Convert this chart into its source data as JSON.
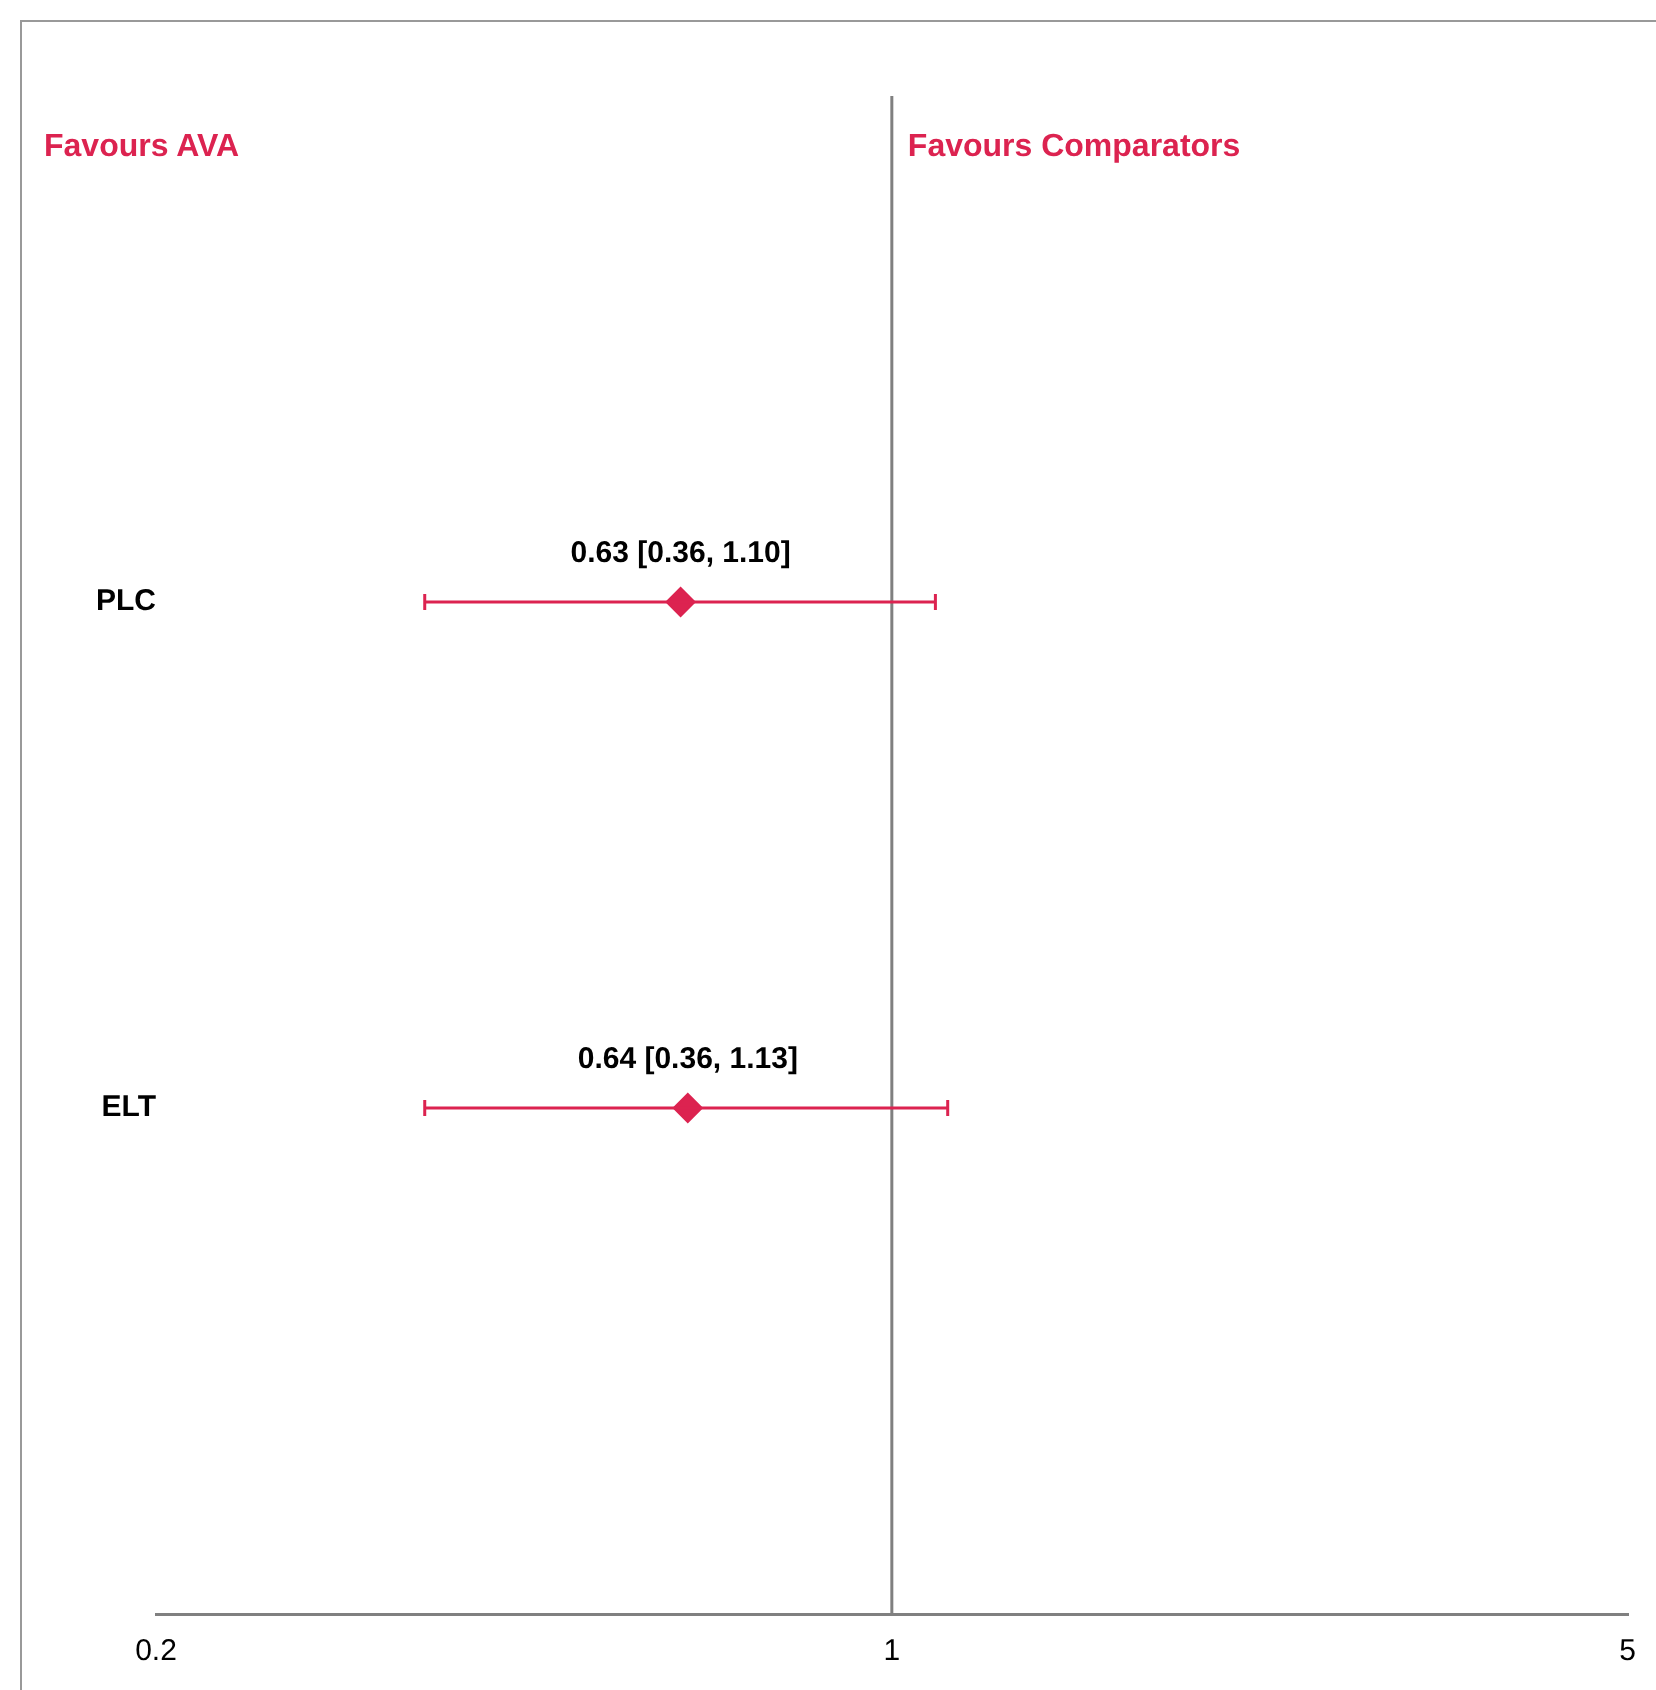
{
  "chart_data": {
    "type": "scatter",
    "orientation": "horizontal",
    "log": "x",
    "categories": [
      null,
      "PLC",
      "ELT",
      null
    ],
    "series": [
      {
        "color": "#dc2350",
        "values": [
          null,
          0.63,
          0.64,
          null
        ],
        "errors": [
          null,
          [
            0.36,
            1.1
          ],
          [
            0.36,
            1.13
          ],
          null
        ],
        "value_labels": [
          null,
          "0.63 [0.36, 1.10]",
          "0.64 [0.36, 1.13]",
          null
        ]
      }
    ],
    "marker": "diamond",
    "xlim": [
      0.2,
      5
    ],
    "xticks": [
      0.2,
      1,
      5
    ],
    "grid": false,
    "legend": false,
    "ref_lines": [
      {
        "axis": "x",
        "value": 1,
        "color": "#808080"
      }
    ],
    "annotations": [
      "Favours AVA",
      "Favours Comparators"
    ]
  }
}
